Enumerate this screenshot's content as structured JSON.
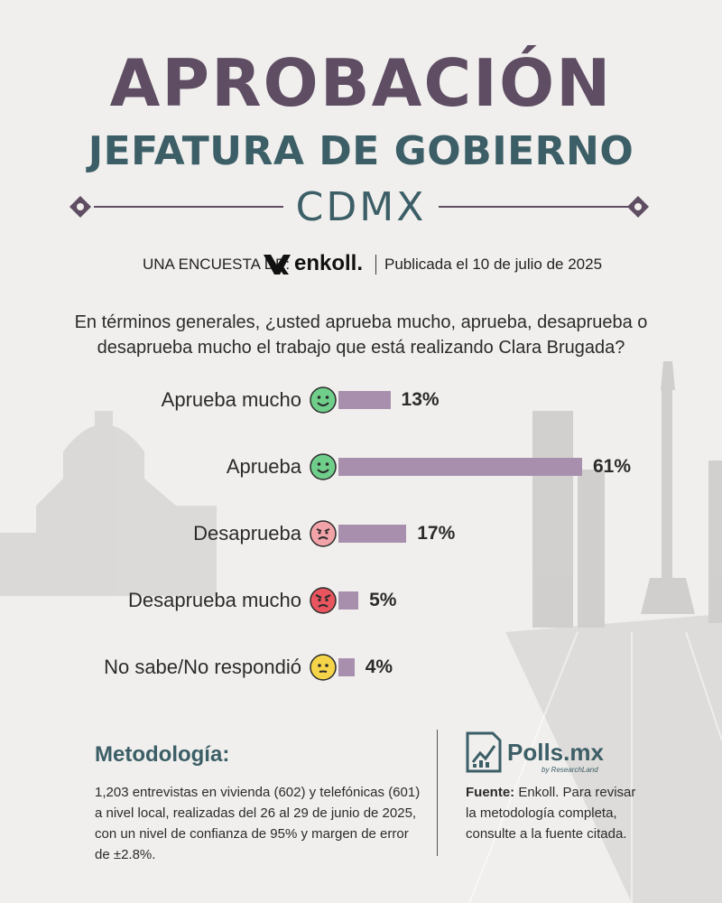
{
  "header": {
    "title": "APROBACIÓN",
    "subtitle": "JEFATURA DE GOBIERNO",
    "city": "CDMX"
  },
  "byline": {
    "survey_label": "UNA ENCUESTA DE:",
    "brand": "enkoll.",
    "published": "Publicada el 10 de julio de 2025"
  },
  "question": "En términos generales, ¿usted aprueba mucho, aprueba, desaprueba o desaprueba mucho el trabajo que está realizando Clara Brugada?",
  "chart_data": {
    "type": "bar",
    "categories": [
      "Aprueba mucho",
      "Aprueba",
      "Desaprueba",
      "Desaprueba mucho",
      "No sabe/No respondió"
    ],
    "values": [
      13,
      61,
      17,
      5,
      4
    ],
    "value_labels": [
      "13%",
      "61%",
      "17%",
      "5%",
      "4%"
    ],
    "icons": [
      "smiling-face-icon",
      "smiling-face-icon",
      "annoyed-face-icon",
      "angry-face-icon",
      "neutral-face-icon"
    ],
    "icon_colors": [
      "#6fcf8a",
      "#6fcf8a",
      "#f2a3a8",
      "#e8555e",
      "#f5d44a"
    ],
    "bar_color": "#a98fae",
    "orientation": "horizontal"
  },
  "methodology": {
    "title": "Metodología:",
    "text": "1,203 entrevistas en vivienda (602) y telefónicas (601) a nivel local, realizadas del 26 al 29 de junio de 2025, con un nivel de confianza de 95% y margen de error de ±2.8%."
  },
  "source": {
    "logo_name": "Polls.mx",
    "logo_sub": "by ResearchLand",
    "label": "Fuente:",
    "text": " Enkoll. Para revisar la metodología completa, consulte a la fuente citada."
  },
  "colors": {
    "title": "#5e4d63",
    "subtitle": "#3c5e66",
    "bar": "#a98fae",
    "background": "#f0efed"
  }
}
